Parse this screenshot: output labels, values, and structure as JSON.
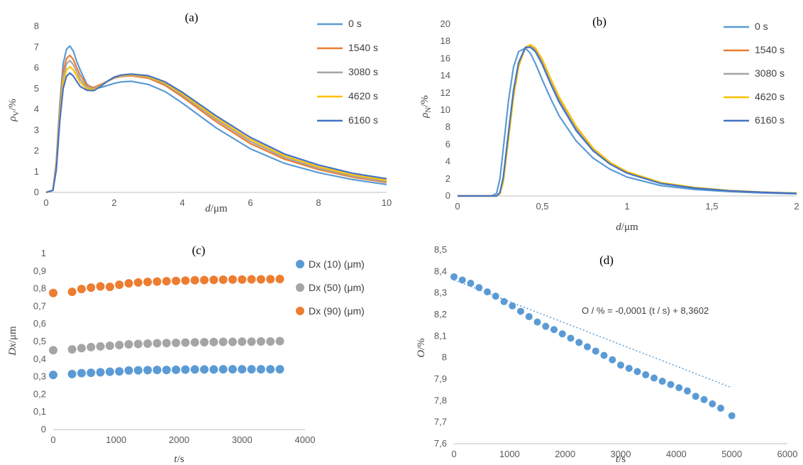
{
  "chart_data": [
    {
      "id": "a",
      "type": "line",
      "title": "(a)",
      "xlabel_italic": "d",
      "xlabel_rest": "/μm",
      "ylabel_main": "ρ",
      "ylabel_sub": "V",
      "ylabel_rest": "/%",
      "xlim": [
        0,
        10
      ],
      "ylim": [
        0,
        8
      ],
      "xticks": [
        0,
        2,
        4,
        6,
        8,
        10
      ],
      "yticks": [
        0,
        1,
        2,
        3,
        4,
        5,
        6,
        7,
        8
      ],
      "grid": false,
      "legend": "top-right",
      "x": [
        0,
        0.2,
        0.3,
        0.4,
        0.5,
        0.6,
        0.7,
        0.8,
        0.9,
        1.0,
        1.2,
        1.4,
        1.6,
        1.8,
        2.0,
        2.2,
        2.5,
        3.0,
        3.5,
        4.0,
        5.0,
        6.0,
        7.0,
        8.0,
        9.0,
        10.0
      ],
      "series": [
        {
          "name": "0 s",
          "color": "#5B9BD5",
          "values": [
            0,
            0.1,
            1.5,
            4.2,
            6.2,
            6.9,
            7.05,
            6.8,
            6.3,
            5.9,
            5.2,
            5.0,
            5.05,
            5.15,
            5.25,
            5.32,
            5.35,
            5.2,
            4.85,
            4.3,
            3.1,
            2.1,
            1.4,
            0.95,
            0.62,
            0.38
          ]
        },
        {
          "name": "1540 s",
          "color": "#ED7D31",
          "values": [
            0,
            0.1,
            1.4,
            4.0,
            5.8,
            6.45,
            6.6,
            6.4,
            6.0,
            5.65,
            5.15,
            5.05,
            5.2,
            5.35,
            5.5,
            5.58,
            5.62,
            5.5,
            5.15,
            4.6,
            3.4,
            2.35,
            1.6,
            1.1,
            0.73,
            0.48
          ]
        },
        {
          "name": "3080 s",
          "color": "#A5A5A5",
          "values": [
            0,
            0.1,
            1.3,
            3.8,
            5.55,
            6.2,
            6.35,
            6.15,
            5.8,
            5.45,
            5.05,
            5.0,
            5.15,
            5.35,
            5.52,
            5.6,
            5.65,
            5.55,
            5.22,
            4.68,
            3.5,
            2.45,
            1.68,
            1.16,
            0.78,
            0.52
          ]
        },
        {
          "name": "4620 s",
          "color": "#FFC000",
          "values": [
            0,
            0.1,
            1.2,
            3.6,
            5.3,
            5.9,
            6.05,
            5.9,
            5.6,
            5.3,
            4.98,
            4.95,
            5.12,
            5.35,
            5.55,
            5.63,
            5.67,
            5.58,
            5.27,
            4.75,
            3.58,
            2.55,
            1.76,
            1.23,
            0.84,
            0.58
          ]
        },
        {
          "name": "6160 s",
          "color": "#4472C4",
          "values": [
            0,
            0.1,
            1.1,
            3.4,
            5.0,
            5.6,
            5.75,
            5.6,
            5.35,
            5.1,
            4.92,
            4.9,
            5.1,
            5.35,
            5.55,
            5.65,
            5.7,
            5.62,
            5.32,
            4.82,
            3.68,
            2.65,
            1.85,
            1.32,
            0.92,
            0.66
          ]
        }
      ]
    },
    {
      "id": "b",
      "type": "line",
      "title": "(b)",
      "xlabel_italic": "d",
      "xlabel_rest": "/μm",
      "ylabel_main": "ρ",
      "ylabel_sub": "N",
      "ylabel_rest": "/%",
      "xlim": [
        0,
        2
      ],
      "ylim": [
        0,
        20
      ],
      "xticks": [
        0,
        0.5,
        1,
        1.5,
        2
      ],
      "xtick_labels": [
        "0",
        "0,5",
        "1",
        "1,5",
        "2"
      ],
      "yticks": [
        0,
        2,
        4,
        6,
        8,
        10,
        12,
        14,
        16,
        18,
        20
      ],
      "grid": false,
      "legend": "top-right",
      "x": [
        0,
        0.2,
        0.23,
        0.25,
        0.27,
        0.3,
        0.33,
        0.36,
        0.4,
        0.43,
        0.46,
        0.5,
        0.55,
        0.6,
        0.7,
        0.8,
        0.9,
        1.0,
        1.2,
        1.4,
        1.6,
        1.8,
        2.0
      ],
      "series": [
        {
          "name": "0 s",
          "color": "#5B9BD5",
          "values": [
            0,
            0,
            0.3,
            2.0,
            5.5,
            11.0,
            15.0,
            16.8,
            17.2,
            16.6,
            15.4,
            13.5,
            11.3,
            9.3,
            6.4,
            4.4,
            3.1,
            2.2,
            1.2,
            0.75,
            0.5,
            0.35,
            0.25
          ]
        },
        {
          "name": "1540 s",
          "color": "#ED7D31",
          "values": [
            0,
            0,
            0.0,
            0.3,
            1.8,
            6.8,
            11.8,
            15.2,
            17.2,
            17.5,
            17.0,
            15.6,
            13.3,
            11.2,
            7.9,
            5.4,
            3.8,
            2.75,
            1.5,
            0.95,
            0.62,
            0.44,
            0.32
          ]
        },
        {
          "name": "3080 s",
          "color": "#A5A5A5",
          "values": [
            0,
            0,
            0.0,
            0.35,
            2.0,
            7.0,
            12.0,
            15.3,
            17.2,
            17.4,
            16.9,
            15.5,
            13.2,
            11.1,
            7.8,
            5.35,
            3.75,
            2.7,
            1.48,
            0.93,
            0.61,
            0.43,
            0.31
          ]
        },
        {
          "name": "4620 s",
          "color": "#FFC000",
          "values": [
            0,
            0,
            0.0,
            0.25,
            1.6,
            6.5,
            11.5,
            15.0,
            17.3,
            17.6,
            17.2,
            15.9,
            13.6,
            11.5,
            8.1,
            5.55,
            3.9,
            2.82,
            1.55,
            0.98,
            0.64,
            0.45,
            0.33
          ]
        },
        {
          "name": "6160 s",
          "color": "#4472C4",
          "values": [
            0,
            0,
            0.0,
            0.4,
            2.2,
            7.3,
            12.3,
            15.5,
            17.3,
            17.3,
            16.8,
            15.3,
            13.0,
            10.9,
            7.6,
            5.25,
            3.7,
            2.65,
            1.45,
            0.91,
            0.6,
            0.42,
            0.3
          ]
        }
      ]
    },
    {
      "id": "c",
      "type": "scatter",
      "title": "(c)",
      "xlabel_italic": "t",
      "xlabel_rest": "/s",
      "ylabel_main": "Dx",
      "ylabel_sub": "",
      "ylabel_rest": "/μm",
      "xlim": [
        0,
        4000
      ],
      "ylim": [
        0,
        1
      ],
      "xticks": [
        0,
        1000,
        2000,
        3000,
        4000
      ],
      "yticks": [
        0,
        0.1,
        0.2,
        0.3,
        0.4,
        0.5,
        0.6,
        0.7,
        0.8,
        0.9,
        1
      ],
      "ytick_labels": [
        "0",
        "0,1",
        "0,2",
        "0,3",
        "0,4",
        "0,5",
        "0,6",
        "0,7",
        "0,8",
        "0,9",
        "1"
      ],
      "grid": false,
      "legend": "top-right",
      "x": [
        0,
        300,
        450,
        600,
        750,
        900,
        1050,
        1200,
        1350,
        1500,
        1650,
        1800,
        1950,
        2100,
        2250,
        2400,
        2550,
        2700,
        2850,
        3000,
        3150,
        3300,
        3450,
        3600
      ],
      "series": [
        {
          "name": "Dx (10) (μm)",
          "color": "#5B9BD5",
          "values": [
            0.31,
            0.315,
            0.32,
            0.322,
            0.325,
            0.328,
            0.33,
            0.335,
            0.336,
            0.337,
            0.338,
            0.338,
            0.339,
            0.34,
            0.341,
            0.341,
            0.341,
            0.342,
            0.342,
            0.342,
            0.342,
            0.342,
            0.342,
            0.342
          ]
        },
        {
          "name": "Dx (50) (μm)",
          "color": "#A5A5A5",
          "values": [
            0.45,
            0.455,
            0.462,
            0.468,
            0.472,
            0.476,
            0.48,
            0.484,
            0.486,
            0.488,
            0.49,
            0.491,
            0.492,
            0.494,
            0.495,
            0.496,
            0.497,
            0.498,
            0.498,
            0.499,
            0.499,
            0.5,
            0.5,
            0.502
          ]
        },
        {
          "name": "Dx (90) (μm)",
          "color": "#ED7D31",
          "values": [
            0.775,
            0.782,
            0.798,
            0.806,
            0.813,
            0.81,
            0.822,
            0.83,
            0.835,
            0.838,
            0.84,
            0.842,
            0.844,
            0.846,
            0.848,
            0.849,
            0.85,
            0.851,
            0.852,
            0.852,
            0.853,
            0.853,
            0.854,
            0.855
          ]
        }
      ]
    },
    {
      "id": "d",
      "type": "scatter",
      "title": "(d)",
      "xlabel_italic": "t",
      "xlabel_rest": "/s",
      "ylabel_main": "O",
      "ylabel_sub": "",
      "ylabel_rest": "/%",
      "xlim": [
        0,
        6000
      ],
      "ylim": [
        7.6,
        8.5
      ],
      "xticks": [
        0,
        1000,
        2000,
        3000,
        4000,
        5000,
        6000
      ],
      "yticks": [
        7.6,
        7.7,
        7.8,
        7.9,
        8.0,
        8.1,
        8.2,
        8.3,
        8.4,
        8.5
      ],
      "ytick_labels": [
        "7,6",
        "7,7",
        "7,8",
        "7,9",
        "8",
        "8,1",
        "8,2",
        "8,3",
        "8,4",
        "8,5"
      ],
      "grid": false,
      "legend": "none",
      "annotation": "O / % = -0,0001 (t / s) + 8,3602",
      "trendline": {
        "slope": -0.0001,
        "intercept": 8.3602,
        "x_range": [
          0,
          5000
        ],
        "style": "dotted"
      },
      "x": [
        0,
        150,
        300,
        450,
        600,
        750,
        900,
        1050,
        1200,
        1350,
        1500,
        1650,
        1800,
        1950,
        2100,
        2250,
        2400,
        2550,
        2700,
        2850,
        3000,
        3150,
        3300,
        3450,
        3600,
        3750,
        3900,
        4050,
        4200,
        4350,
        4500,
        4650,
        4800,
        5000
      ],
      "series": [
        {
          "name": "",
          "color": "#5B9BD5",
          "values": [
            8.375,
            8.36,
            8.345,
            8.325,
            8.305,
            8.285,
            8.26,
            8.24,
            8.215,
            8.19,
            8.165,
            8.145,
            8.13,
            8.11,
            8.09,
            8.07,
            8.05,
            8.03,
            8.01,
            7.99,
            7.965,
            7.95,
            7.935,
            7.92,
            7.905,
            7.89,
            7.875,
            7.86,
            7.845,
            7.82,
            7.805,
            7.785,
            7.765,
            7.73
          ]
        }
      ]
    }
  ]
}
